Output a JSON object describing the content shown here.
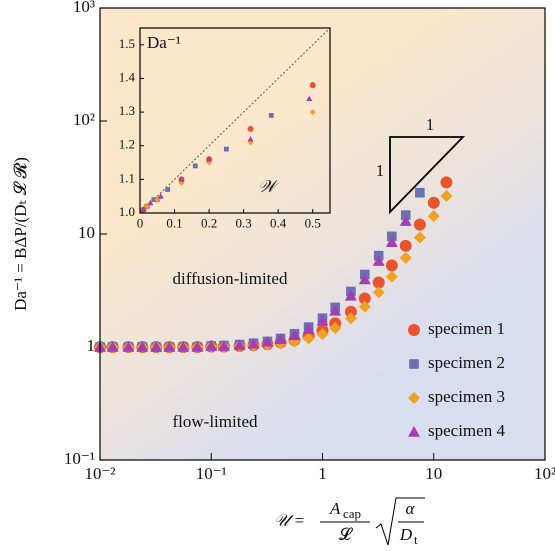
{
  "chart_data": [
    {
      "type": "scatter",
      "log_x": true,
      "log_y": true,
      "xlim": [
        0.01,
        100
      ],
      "ylim": [
        0.1,
        1000
      ],
      "xticks": [
        {
          "value": 0.01,
          "label": "10⁻²"
        },
        {
          "value": 0.1,
          "label": "10⁻¹"
        },
        1,
        10,
        {
          "value": 100,
          "label": "10²"
        }
      ],
      "yticks": [
        {
          "value": 0.1,
          "label": "10⁻¹"
        },
        1,
        10,
        {
          "value": 100,
          "label": "10²"
        },
        {
          "value": 1000,
          "label": "10³"
        }
      ],
      "ylabel": "Da⁻¹ = BΔP/(Dₜ 𝓛 𝓡)",
      "xlabel": {
        "lhs": "𝒰 =",
        "num1": "A",
        "num1_sub": "cap",
        "den1": "𝓛",
        "num2": "α",
        "den2": "D",
        "den2_sub": "t"
      },
      "annotations": [
        "diffusion-limited",
        "flow-limited"
      ],
      "slope_labels": [
        "1",
        "1"
      ],
      "legend": "right",
      "series": [
        {
          "name": "specimen 1",
          "color": "#e8542c",
          "marker": "circle",
          "x": [
            0.01,
            0.013,
            0.018,
            0.024,
            0.032,
            0.042,
            0.056,
            0.075,
            0.1,
            0.13,
            0.18,
            0.24,
            0.32,
            0.42,
            0.56,
            0.75,
            1,
            1.3,
            1.8,
            2.4,
            3.2,
            4.2,
            5.6,
            7.5,
            10,
            13
          ],
          "values": [
            1,
            1,
            1,
            1,
            1,
            1,
            1,
            1,
            1.01,
            1.01,
            1.02,
            1.04,
            1.06,
            1.1,
            1.15,
            1.25,
            1.4,
            1.62,
            2.05,
            2.69,
            3.72,
            5.27,
            7.86,
            12.1,
            18.9,
            28.6
          ]
        },
        {
          "name": "specimen 2",
          "color": "#6b70b3",
          "marker": "square",
          "x": [
            0.01,
            0.013,
            0.018,
            0.024,
            0.032,
            0.042,
            0.056,
            0.075,
            0.1,
            0.13,
            0.18,
            0.24,
            0.32,
            0.42,
            0.56,
            0.75,
            1,
            1.3,
            1.8,
            2.4,
            3.2,
            4.2,
            5.6,
            7.5
          ],
          "values": [
            1,
            1,
            1,
            1,
            1,
            1,
            1,
            1,
            1.02,
            1.03,
            1.05,
            1.08,
            1.12,
            1.19,
            1.31,
            1.5,
            1.8,
            2.24,
            3.1,
            4.38,
            6.44,
            9.54,
            14.7,
            23.2
          ]
        },
        {
          "name": "specimen 3",
          "color": "#f0a123",
          "marker": "diamond",
          "x": [
            0.01,
            0.013,
            0.018,
            0.024,
            0.032,
            0.042,
            0.056,
            0.075,
            0.1,
            0.13,
            0.18,
            0.24,
            0.32,
            0.42,
            0.56,
            0.75,
            1,
            1.3,
            1.8,
            2.4,
            3.2,
            4.2,
            5.6,
            7.5,
            10,
            13
          ],
          "values": [
            1,
            1,
            1,
            1,
            1,
            1,
            1,
            1,
            1.01,
            1.01,
            1.02,
            1.03,
            1.05,
            1.07,
            1.12,
            1.19,
            1.3,
            1.47,
            1.79,
            2.27,
            3.04,
            4.2,
            6.15,
            9.3,
            14.4,
            21.7
          ]
        },
        {
          "name": "specimen 4",
          "color": "#a43fb0",
          "marker": "triangle",
          "x": [
            0.01,
            0.013,
            0.018,
            0.024,
            0.032,
            0.042,
            0.056,
            0.075,
            0.1,
            0.13,
            0.18,
            0.24,
            0.32,
            0.42,
            0.56,
            0.75,
            1,
            1.3,
            1.8,
            2.4,
            3.2,
            4.2,
            5.6
          ],
          "values": [
            1,
            1,
            1,
            1,
            1,
            1,
            1,
            1,
            1.02,
            1.02,
            1.04,
            1.07,
            1.11,
            1.17,
            1.27,
            1.44,
            1.7,
            2.09,
            2.84,
            3.96,
            5.76,
            8.47,
            13.0
          ]
        }
      ]
    },
    {
      "type": "scatter",
      "log_x": false,
      "log_y": false,
      "xlim": [
        0,
        0.55
      ],
      "ylim": [
        1.0,
        1.55
      ],
      "xticks": [
        0,
        0.1,
        0.2,
        0.3,
        0.4,
        0.5
      ],
      "yticks": [
        {
          "value": 1.0,
          "label": "1.0"
        },
        1.1,
        1.2,
        1.3,
        1.4,
        1.5
      ],
      "ylabel": "Da⁻¹",
      "xlabel": "𝒲",
      "series": [
        {
          "color": "#e8542c",
          "marker": "circle",
          "x": [
            0.01,
            0.02,
            0.05,
            0.12,
            0.2,
            0.32,
            0.5
          ],
          "values": [
            1.01,
            1.02,
            1.04,
            1.1,
            1.16,
            1.25,
            1.38
          ]
        },
        {
          "color": "#6b70b3",
          "marker": "square",
          "x": [
            0.02,
            0.04,
            0.08,
            0.16,
            0.25,
            0.38
          ],
          "values": [
            1.02,
            1.04,
            1.07,
            1.14,
            1.19,
            1.29
          ]
        },
        {
          "color": "#f0a123",
          "marker": "diamond",
          "x": [
            0.02,
            0.05,
            0.12,
            0.2,
            0.32,
            0.5
          ],
          "values": [
            1.02,
            1.04,
            1.09,
            1.15,
            1.21,
            1.3
          ]
        },
        {
          "color": "#a43fb0",
          "marker": "triangle",
          "x": [
            0.01,
            0.03,
            0.06,
            0.12,
            0.2,
            0.32,
            0.49
          ],
          "values": [
            1.01,
            1.03,
            1.05,
            1.1,
            1.16,
            1.22,
            1.34
          ]
        }
      ]
    }
  ]
}
